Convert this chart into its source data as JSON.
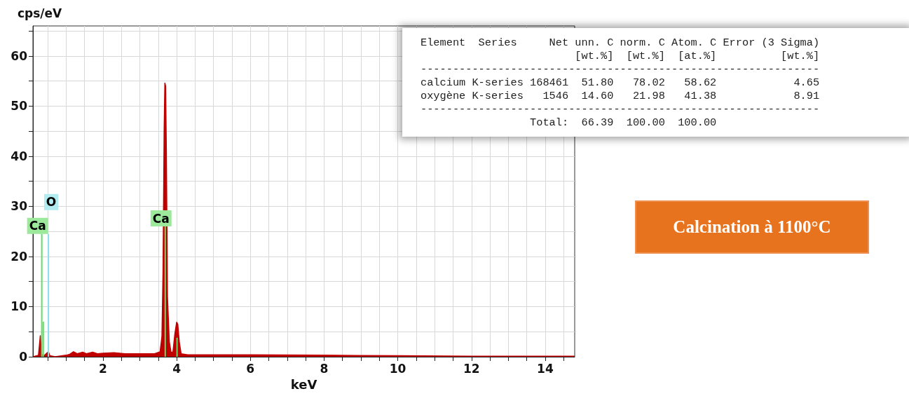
{
  "chart_data": [
    {
      "type": "area",
      "xlabel": "keV",
      "ylabel": "cps/eV",
      "xlim": [
        0.1,
        14.8
      ],
      "ylim": [
        0,
        66
      ],
      "xticks": [
        {
          "value": 0.5,
          "label": null
        },
        {
          "value": 1,
          "label": null
        },
        {
          "value": 1.5,
          "label": null
        },
        2,
        {
          "value": 2.5,
          "label": null
        },
        {
          "value": 3,
          "label": null
        },
        {
          "value": 3.5,
          "label": null
        },
        4,
        {
          "value": 4.5,
          "label": null
        },
        {
          "value": 5,
          "label": null
        },
        {
          "value": 5.5,
          "label": null
        },
        6,
        {
          "value": 6.5,
          "label": null
        },
        {
          "value": 7,
          "label": null
        },
        {
          "value": 7.5,
          "label": null
        },
        8,
        {
          "value": 8.5,
          "label": null
        },
        {
          "value": 9,
          "label": null
        },
        {
          "value": 9.5,
          "label": null
        },
        10,
        {
          "value": 10.5,
          "label": null
        },
        {
          "value": 11,
          "label": null
        },
        {
          "value": 11.5,
          "label": null
        },
        12,
        {
          "value": 12.5,
          "label": null
        },
        {
          "value": 13,
          "label": null
        },
        {
          "value": 13.5,
          "label": null
        },
        14,
        {
          "value": 14.5,
          "label": null
        }
      ],
      "yticks": [
        0,
        {
          "value": 5,
          "label": null
        },
        10,
        {
          "value": 15,
          "label": null
        },
        20,
        {
          "value": 25,
          "label": null
        },
        30,
        {
          "value": 35,
          "label": null
        },
        40,
        {
          "value": 45,
          "label": null
        },
        50,
        {
          "value": 55,
          "label": null
        },
        60,
        {
          "value": 65,
          "label": null
        }
      ],
      "grid": true,
      "series": [
        {
          "type": "area",
          "color": "#c00000",
          "x": [
            0.1,
            0.25,
            0.3,
            0.33,
            0.4,
            0.52,
            0.56,
            0.7,
            0.9,
            1.0,
            1.1,
            1.2,
            1.3,
            1.45,
            1.55,
            1.72,
            1.85,
            2.0,
            2.3,
            2.6,
            3.0,
            3.4,
            3.55,
            3.6,
            3.63,
            3.66,
            3.68,
            3.7,
            3.72,
            3.75,
            3.8,
            3.85,
            3.9,
            3.95,
            4.0,
            4.03,
            4.07,
            4.12,
            4.3,
            5,
            6,
            8,
            10,
            12,
            14.8
          ],
          "values": [
            0,
            0.3,
            4.2,
            0.5,
            0.2,
            1.0,
            0.2,
            0,
            0.2,
            0.3,
            0.5,
            1.0,
            0.6,
            0.9,
            0.6,
            0.9,
            0.6,
            0.7,
            0.8,
            0.6,
            0.6,
            0.6,
            1.0,
            4,
            17,
            45,
            54.6,
            54,
            41,
            12,
            3,
            0.8,
            1,
            4.5,
            6.9,
            6.5,
            3,
            0.6,
            0.4,
            0.4,
            0.4,
            0.3,
            0.2,
            0.1,
            0.1
          ]
        },
        {
          "type": "bar",
          "color": "#66dd66",
          "x": [
            0.34,
            0.38,
            3.69,
            4.01
          ],
          "values": [
            24.5,
            7,
            26,
            3.8
          ],
          "value_labels": [
            "Ca",
            null,
            "Ca",
            null
          ]
        },
        {
          "type": "bar",
          "color": "#88e0e8",
          "x": [
            0.52
          ],
          "values": [
            24.5
          ],
          "value_labels": [
            "O"
          ]
        }
      ]
    },
    {
      "type": "other",
      "annotations": [
        "Element  Series     Net unn. C norm. C Atom. C Error (3 Sigma)",
        "                        [wt.%]  [wt.%]  [at.%]          [wt.%]",
        "--------------------------------------------------------------",
        "calcium K-series 168461  51.80   78.02   58.62            4.65",
        "oxygène K-series   1546  14.60   21.98   41.38            8.91",
        "--------------------------------------------------------------",
        "                 Total:  66.39  100.00  100.00"
      ]
    },
    {
      "type": "other",
      "annotations": [
        "Calcination à 1100°C"
      ]
    }
  ]
}
